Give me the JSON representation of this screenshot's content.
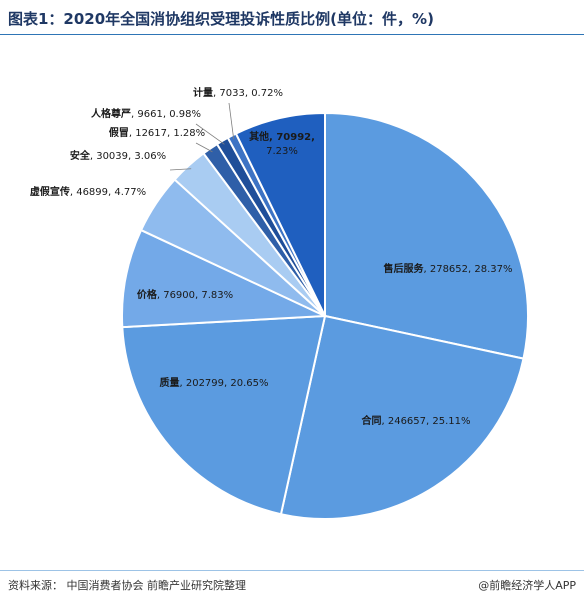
{
  "title": "图表1：2020年全国消协组织受理投诉性质比例(单位：件，%)",
  "footer": {
    "source": "资料来源： 中国消费者协会 前瞻产业研究院整理",
    "brand": "@前瞻经济学人APP"
  },
  "chart_data": {
    "type": "pie",
    "start_angle_deg": 0,
    "direction": "clockwise",
    "slices": [
      {
        "name": "售后服务",
        "value": 278652,
        "percent": "28.37%",
        "color": "#5b9be0"
      },
      {
        "name": "合同",
        "value": 246657,
        "percent": "25.11%",
        "color": "#5b9be0"
      },
      {
        "name": "质量",
        "value": 202799,
        "percent": "20.65%",
        "color": "#5b9be0"
      },
      {
        "name": "价格",
        "value": 76900,
        "percent": "7.83%",
        "color": "#73a9e8"
      },
      {
        "name": "虚假宣传",
        "value": 46899,
        "percent": "4.77%",
        "color": "#8fbbee"
      },
      {
        "name": "安全",
        "value": 30039,
        "percent": "3.06%",
        "color": "#a9ccf2"
      },
      {
        "name": "假冒",
        "value": 12617,
        "percent": "1.28%",
        "color": "#2f5fa8"
      },
      {
        "name": "人格尊严",
        "value": 9661,
        "percent": "0.98%",
        "color": "#1f4e99"
      },
      {
        "name": "计量",
        "value": 7033,
        "percent": "0.72%",
        "color": "#3d73c4"
      },
      {
        "name": "其他",
        "value": 70992,
        "percent": "7.23%",
        "color": "#1f5fbf"
      }
    ]
  }
}
